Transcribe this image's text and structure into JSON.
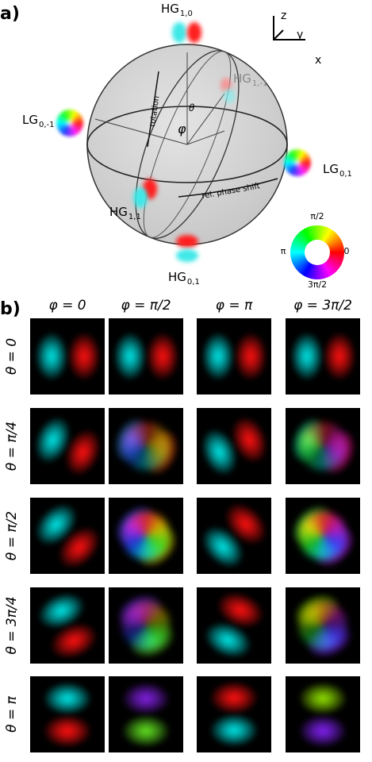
{
  "panel_a": {
    "label": "a)",
    "modes": [
      {
        "name": "HG",
        "sub": "1,0"
      },
      {
        "name": "HG",
        "sub": "1,-1"
      },
      {
        "name": "LG",
        "sub": "0,-1"
      },
      {
        "name": "LG",
        "sub": "0,1"
      },
      {
        "name": "HG",
        "sub": "1,1"
      },
      {
        "name": "HG",
        "sub": "0,1"
      }
    ],
    "annotations": {
      "rotation": "rotation",
      "phase_shift": "rel. phase shift",
      "phi": "φ",
      "theta": "θ"
    },
    "axes": [
      "z",
      "y",
      "x"
    ],
    "color_wheel": [
      "π/2",
      "π",
      "0",
      "3π/2"
    ]
  },
  "panel_b": {
    "label": "b)",
    "columns": [
      "φ = 0",
      "φ = π/2",
      "φ = π",
      "φ = 3π/2"
    ],
    "rows": [
      "θ = 0",
      "θ = π/4",
      "θ = π/2",
      "θ = 3π/4",
      "θ = π"
    ]
  }
}
